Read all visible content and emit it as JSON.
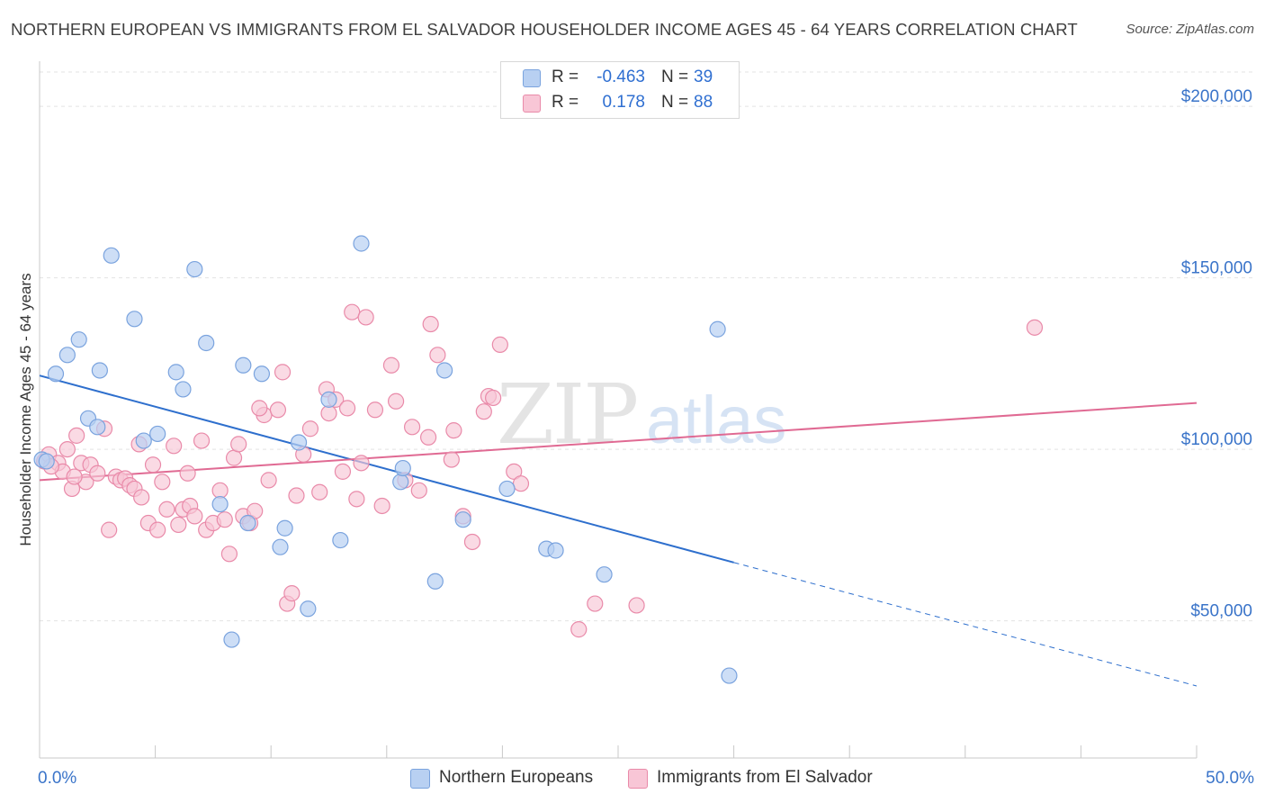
{
  "header": {
    "title": "NORTHERN EUROPEAN VS IMMIGRANTS FROM EL SALVADOR HOUSEHOLDER INCOME AGES 45 - 64 YEARS CORRELATION CHART",
    "source": "Source: ZipAtlas.com"
  },
  "watermark": {
    "text_zip": "ZIP",
    "text_atlas": "atlas"
  },
  "legend": {
    "rows": [
      {
        "r_label": "R =",
        "r_value": "-0.463",
        "n_label": "N =",
        "n_value": "39"
      },
      {
        "r_label": "R =",
        "r_value": "0.178",
        "n_label": "N =",
        "n_value": "88"
      }
    ]
  },
  "colors": {
    "blue_fill": "#b8d0f2",
    "blue_stroke": "#7aa3de",
    "blue_line": "#2e6fcd",
    "pink_fill": "#f8c6d6",
    "pink_stroke": "#e98aa9",
    "pink_line": "#e06a93",
    "axis_text": "#3a74c9",
    "grid": "#e3e3e3"
  },
  "chart_data": {
    "type": "scatter",
    "title": "NORTHERN EUROPEAN VS IMMIGRANTS FROM EL SALVADOR HOUSEHOLDER INCOME AGES 45 - 64 YEARS CORRELATION CHART",
    "xlabel": "",
    "ylabel": "Householder Income Ages 45 - 64 years",
    "xlim": [
      0,
      50
    ],
    "ylim": [
      10000,
      210000
    ],
    "x_tick_labels": [
      "0.0%",
      "50.0%"
    ],
    "y_ticks": [
      50000,
      100000,
      150000,
      200000
    ],
    "y_tick_labels": [
      "$50,000",
      "$100,000",
      "$150,000",
      "$200,000"
    ],
    "grid": true,
    "legend_position": "top-center",
    "series": [
      {
        "name": "Northern Europeans",
        "r": -0.463,
        "n": 39,
        "trend": {
          "x0": 0,
          "y0": 121500,
          "x1": 30,
          "y1": 67000,
          "dash_to_x": 50,
          "dash_to_y": 31000
        },
        "points": [
          [
            0.1,
            97000
          ],
          [
            0.7,
            122000
          ],
          [
            1.2,
            127500
          ],
          [
            1.7,
            132000
          ],
          [
            2.1,
            109000
          ],
          [
            2.6,
            123000
          ],
          [
            2.5,
            106500
          ],
          [
            3.1,
            156500
          ],
          [
            4.1,
            138000
          ],
          [
            4.5,
            102500
          ],
          [
            5.1,
            104500
          ],
          [
            5.9,
            122500
          ],
          [
            6.2,
            117500
          ],
          [
            6.7,
            152500
          ],
          [
            7.2,
            131000
          ],
          [
            7.8,
            84000
          ],
          [
            8.3,
            44500
          ],
          [
            8.8,
            124500
          ],
          [
            9.0,
            78500
          ],
          [
            9.6,
            122000
          ],
          [
            10.4,
            71500
          ],
          [
            10.6,
            77000
          ],
          [
            11.2,
            102000
          ],
          [
            11.6,
            53500
          ],
          [
            12.5,
            114500
          ],
          [
            13.0,
            73500
          ],
          [
            13.9,
            160000
          ],
          [
            15.6,
            90500
          ],
          [
            15.7,
            94500
          ],
          [
            17.1,
            61500
          ],
          [
            17.5,
            123000
          ],
          [
            18.3,
            79500
          ],
          [
            20.2,
            88500
          ],
          [
            21.9,
            71000
          ],
          [
            22.3,
            70500
          ],
          [
            24.4,
            63500
          ],
          [
            29.3,
            135000
          ],
          [
            29.8,
            34000
          ],
          [
            0.3,
            96500
          ]
        ]
      },
      {
        "name": "Immigrants from El Salvador",
        "r": 0.178,
        "n": 88,
        "trend": {
          "x0": 0,
          "y0": 91000,
          "x1": 50,
          "y1": 113500
        },
        "points": [
          [
            0.2,
            96500
          ],
          [
            0.4,
            98500
          ],
          [
            0.8,
            96000
          ],
          [
            1.0,
            93500
          ],
          [
            1.2,
            100000
          ],
          [
            1.4,
            88500
          ],
          [
            1.6,
            104000
          ],
          [
            1.8,
            96000
          ],
          [
            2.0,
            90500
          ],
          [
            2.2,
            95500
          ],
          [
            2.5,
            93000
          ],
          [
            2.8,
            106000
          ],
          [
            3.0,
            76500
          ],
          [
            3.3,
            92000
          ],
          [
            3.5,
            91000
          ],
          [
            3.7,
            91500
          ],
          [
            3.9,
            89500
          ],
          [
            4.1,
            88500
          ],
          [
            4.3,
            101500
          ],
          [
            4.4,
            86000
          ],
          [
            4.7,
            78500
          ],
          [
            4.9,
            95500
          ],
          [
            5.1,
            76500
          ],
          [
            5.3,
            90500
          ],
          [
            5.5,
            82500
          ],
          [
            5.8,
            101000
          ],
          [
            6.0,
            78000
          ],
          [
            6.2,
            82500
          ],
          [
            6.4,
            93000
          ],
          [
            6.5,
            83500
          ],
          [
            6.7,
            80500
          ],
          [
            7.0,
            102500
          ],
          [
            7.2,
            76500
          ],
          [
            7.5,
            78500
          ],
          [
            7.8,
            88000
          ],
          [
            8.0,
            79500
          ],
          [
            8.2,
            69500
          ],
          [
            8.4,
            97500
          ],
          [
            8.6,
            101500
          ],
          [
            8.8,
            80500
          ],
          [
            9.1,
            78500
          ],
          [
            9.3,
            82000
          ],
          [
            9.7,
            110000
          ],
          [
            9.5,
            112000
          ],
          [
            9.9,
            91000
          ],
          [
            10.3,
            111500
          ],
          [
            10.5,
            122500
          ],
          [
            10.7,
            55000
          ],
          [
            10.9,
            58000
          ],
          [
            11.1,
            86500
          ],
          [
            11.4,
            98500
          ],
          [
            11.7,
            106000
          ],
          [
            12.1,
            87500
          ],
          [
            12.4,
            117500
          ],
          [
            12.5,
            110500
          ],
          [
            12.8,
            114500
          ],
          [
            13.1,
            93500
          ],
          [
            13.3,
            112000
          ],
          [
            13.5,
            140000
          ],
          [
            13.7,
            85500
          ],
          [
            13.9,
            96000
          ],
          [
            14.1,
            138500
          ],
          [
            14.5,
            111500
          ],
          [
            14.8,
            83500
          ],
          [
            15.2,
            124500
          ],
          [
            15.4,
            114000
          ],
          [
            15.8,
            91000
          ],
          [
            16.1,
            106500
          ],
          [
            16.4,
            88000
          ],
          [
            16.8,
            103500
          ],
          [
            16.9,
            136500
          ],
          [
            17.2,
            127500
          ],
          [
            17.8,
            97000
          ],
          [
            17.9,
            105500
          ],
          [
            18.3,
            80500
          ],
          [
            18.7,
            73000
          ],
          [
            19.2,
            111000
          ],
          [
            19.4,
            115500
          ],
          [
            19.6,
            115000
          ],
          [
            19.9,
            130500
          ],
          [
            20.5,
            93500
          ],
          [
            20.8,
            90000
          ],
          [
            23.3,
            47500
          ],
          [
            24.0,
            55000
          ],
          [
            25.8,
            54500
          ],
          [
            43.0,
            135500
          ],
          [
            0.5,
            95000
          ],
          [
            1.5,
            92000
          ]
        ]
      }
    ]
  },
  "bottom_legend": {
    "items": [
      "Northern Europeans",
      "Immigrants from El Salvador"
    ]
  }
}
